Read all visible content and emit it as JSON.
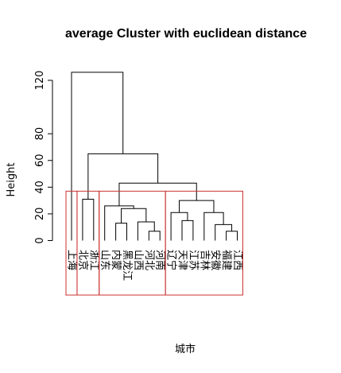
{
  "chart_data": {
    "type": "dendrogram",
    "title": "average Cluster with euclidean distance",
    "xlabel": "城市",
    "ylabel": "Height",
    "ylim": [
      0,
      130
    ],
    "yticks": [
      0,
      20,
      40,
      60,
      80,
      120
    ],
    "leaves": [
      "上海",
      "北京",
      "浙江",
      "山东",
      "内蒙",
      "黑龙江",
      "山西",
      "河北",
      "河南",
      "辽宁",
      "天津",
      "江苏",
      "吉林",
      "安徽",
      "福建",
      "江西"
    ],
    "merges": [
      {
        "left": "河北",
        "right": "河南",
        "height": 7
      },
      {
        "left": "福建",
        "right": "江西",
        "height": 7
      },
      {
        "left": "内蒙",
        "right": "黑龙江",
        "height": 13
      },
      {
        "left": "山西",
        "right": "河北+河南",
        "height": 14
      },
      {
        "left": "天津",
        "right": "江苏",
        "height": 15
      },
      {
        "left": "安徽",
        "right": "福建+江西",
        "height": 12
      },
      {
        "left": "辽宁",
        "right": "天津+江苏",
        "height": 21
      },
      {
        "left": "吉林",
        "right": "安徽+福建+江西",
        "height": 21
      },
      {
        "left": "内蒙+黑龙江",
        "right": "山西+河北+河南",
        "height": 24
      },
      {
        "left": "山东",
        "right": "内蒙…河南",
        "height": 26
      },
      {
        "left": "辽宁…江苏",
        "right": "吉林…江西",
        "height": 30
      },
      {
        "left": "北京",
        "right": "浙江",
        "height": 31
      },
      {
        "left": "山东…河南",
        "right": "辽宁…江西",
        "height": 43
      },
      {
        "left": "北京+浙江",
        "right": "山东…江西",
        "height": 65
      },
      {
        "left": "上海",
        "right": "北京…江西",
        "height": 126
      }
    ],
    "clusters": [
      {
        "members": [
          "上海"
        ]
      },
      {
        "members": [
          "北京",
          "浙江"
        ]
      },
      {
        "members": [
          "山东",
          "内蒙",
          "黑龙江",
          "山西",
          "河北",
          "河南"
        ]
      },
      {
        "members": [
          "辽宁",
          "天津",
          "江苏",
          "吉林",
          "安徽",
          "福建",
          "江西"
        ]
      }
    ],
    "colors": {
      "tree": "#000000",
      "cluster_box": "#cc3333"
    }
  }
}
